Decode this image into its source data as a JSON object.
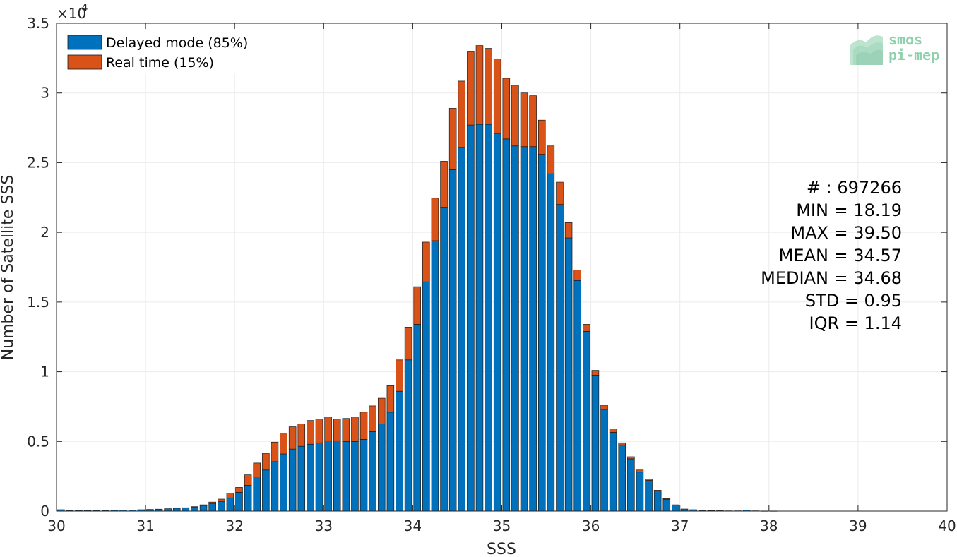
{
  "chart_data": {
    "type": "bar",
    "stacked": true,
    "xlabel": "SSS",
    "ylabel": "Number of Satellite SSS",
    "y_exponent_label": "×10",
    "y_exponent_power": "4",
    "xlim": [
      30,
      40
    ],
    "ylim": [
      0,
      35000
    ],
    "grid": true,
    "legend_position": "top-left",
    "x_ticks": [
      {
        "value": 30,
        "label": "30"
      },
      {
        "value": 31,
        "label": "31"
      },
      {
        "value": 32,
        "label": "32"
      },
      {
        "value": 33,
        "label": "33"
      },
      {
        "value": 34,
        "label": "34"
      },
      {
        "value": 35,
        "label": "35"
      },
      {
        "value": 36,
        "label": "36"
      },
      {
        "value": 37,
        "label": "37"
      },
      {
        "value": 38,
        "label": "38"
      },
      {
        "value": 39,
        "label": "39"
      },
      {
        "value": 40,
        "label": "40"
      }
    ],
    "y_ticks": [
      {
        "value": 0,
        "label": "0"
      },
      {
        "value": 5000,
        "label": "0.5"
      },
      {
        "value": 10000,
        "label": "1"
      },
      {
        "value": 15000,
        "label": "1.5"
      },
      {
        "value": 20000,
        "label": "2"
      },
      {
        "value": 25000,
        "label": "2.5"
      },
      {
        "value": 30000,
        "label": "3"
      },
      {
        "value": 35000,
        "label": "3.5"
      }
    ],
    "bin_width": 0.1,
    "x": [
      30.0,
      30.1,
      30.2,
      30.3,
      30.4,
      30.5,
      30.6,
      30.7,
      30.8,
      30.9,
      31.0,
      31.1,
      31.2,
      31.3,
      31.4,
      31.5,
      31.6,
      31.7,
      31.8,
      31.9,
      32.0,
      32.1,
      32.2,
      32.3,
      32.4,
      32.5,
      32.6,
      32.7,
      32.8,
      32.9,
      33.0,
      33.1,
      33.2,
      33.3,
      33.4,
      33.5,
      33.6,
      33.7,
      33.8,
      33.9,
      34.0,
      34.1,
      34.2,
      34.3,
      34.4,
      34.5,
      34.6,
      34.7,
      34.8,
      34.9,
      35.0,
      35.1,
      35.2,
      35.3,
      35.4,
      35.5,
      35.6,
      35.7,
      35.8,
      35.9,
      36.0,
      36.1,
      36.2,
      36.3,
      36.4,
      36.5,
      36.6,
      36.7,
      36.8,
      36.9,
      37.0,
      37.1,
      37.2,
      37.3,
      37.4,
      37.5,
      37.6,
      37.7,
      37.8,
      37.9,
      38.0
    ],
    "series": [
      {
        "name": "Delayed mode (85%)",
        "color": "#0072bd",
        "values": [
          100,
          50,
          50,
          50,
          50,
          50,
          60,
          70,
          80,
          100,
          120,
          140,
          170,
          200,
          240,
          300,
          400,
          550,
          700,
          950,
          1350,
          1850,
          2450,
          2950,
          3550,
          4100,
          4450,
          4650,
          4800,
          4900,
          5050,
          5050,
          5000,
          5000,
          5150,
          5700,
          6250,
          7100,
          8600,
          10850,
          13400,
          16450,
          19400,
          21800,
          24500,
          26100,
          27700,
          27750,
          27750,
          27100,
          26700,
          26200,
          26150,
          26150,
          25600,
          24200,
          22000,
          19600,
          16550,
          12900,
          9750,
          7300,
          5650,
          4750,
          3750,
          2800,
          2200,
          1450,
          850,
          450,
          150,
          100,
          50,
          40,
          30,
          20,
          20,
          80,
          20,
          10,
          10
        ]
      },
      {
        "name": "Real time (15%)",
        "color": "#d95319",
        "values": [
          0,
          0,
          0,
          0,
          0,
          0,
          0,
          0,
          0,
          0,
          0,
          0,
          0,
          0,
          0,
          20,
          50,
          100,
          160,
          350,
          350,
          750,
          1000,
          1200,
          1400,
          1500,
          1600,
          1600,
          1700,
          1700,
          1700,
          1550,
          1650,
          1750,
          1950,
          1850,
          1850,
          1900,
          2250,
          2350,
          2700,
          2850,
          3050,
          3300,
          4400,
          4750,
          5300,
          5650,
          5450,
          5350,
          4350,
          4350,
          3850,
          3650,
          2450,
          2000,
          1600,
          1100,
          750,
          500,
          350,
          300,
          250,
          150,
          150,
          150,
          100,
          50,
          50,
          0,
          0,
          0,
          0,
          0,
          0,
          0,
          0,
          0,
          0,
          0,
          0
        ]
      }
    ]
  },
  "stats": {
    "lines": [
      "# : 697266",
      "MIN = 18.19",
      "MAX =  39.50",
      "MEAN = 34.57",
      "MEDIAN = 34.68",
      "STD = 0.95",
      "IQR = 1.14"
    ]
  },
  "logo": {
    "line1": "smos",
    "line2": "pi-mep"
  },
  "colors": {
    "grid": "#ebebeb",
    "axis": "#262626",
    "bar_edge": "#1a1a1a"
  }
}
